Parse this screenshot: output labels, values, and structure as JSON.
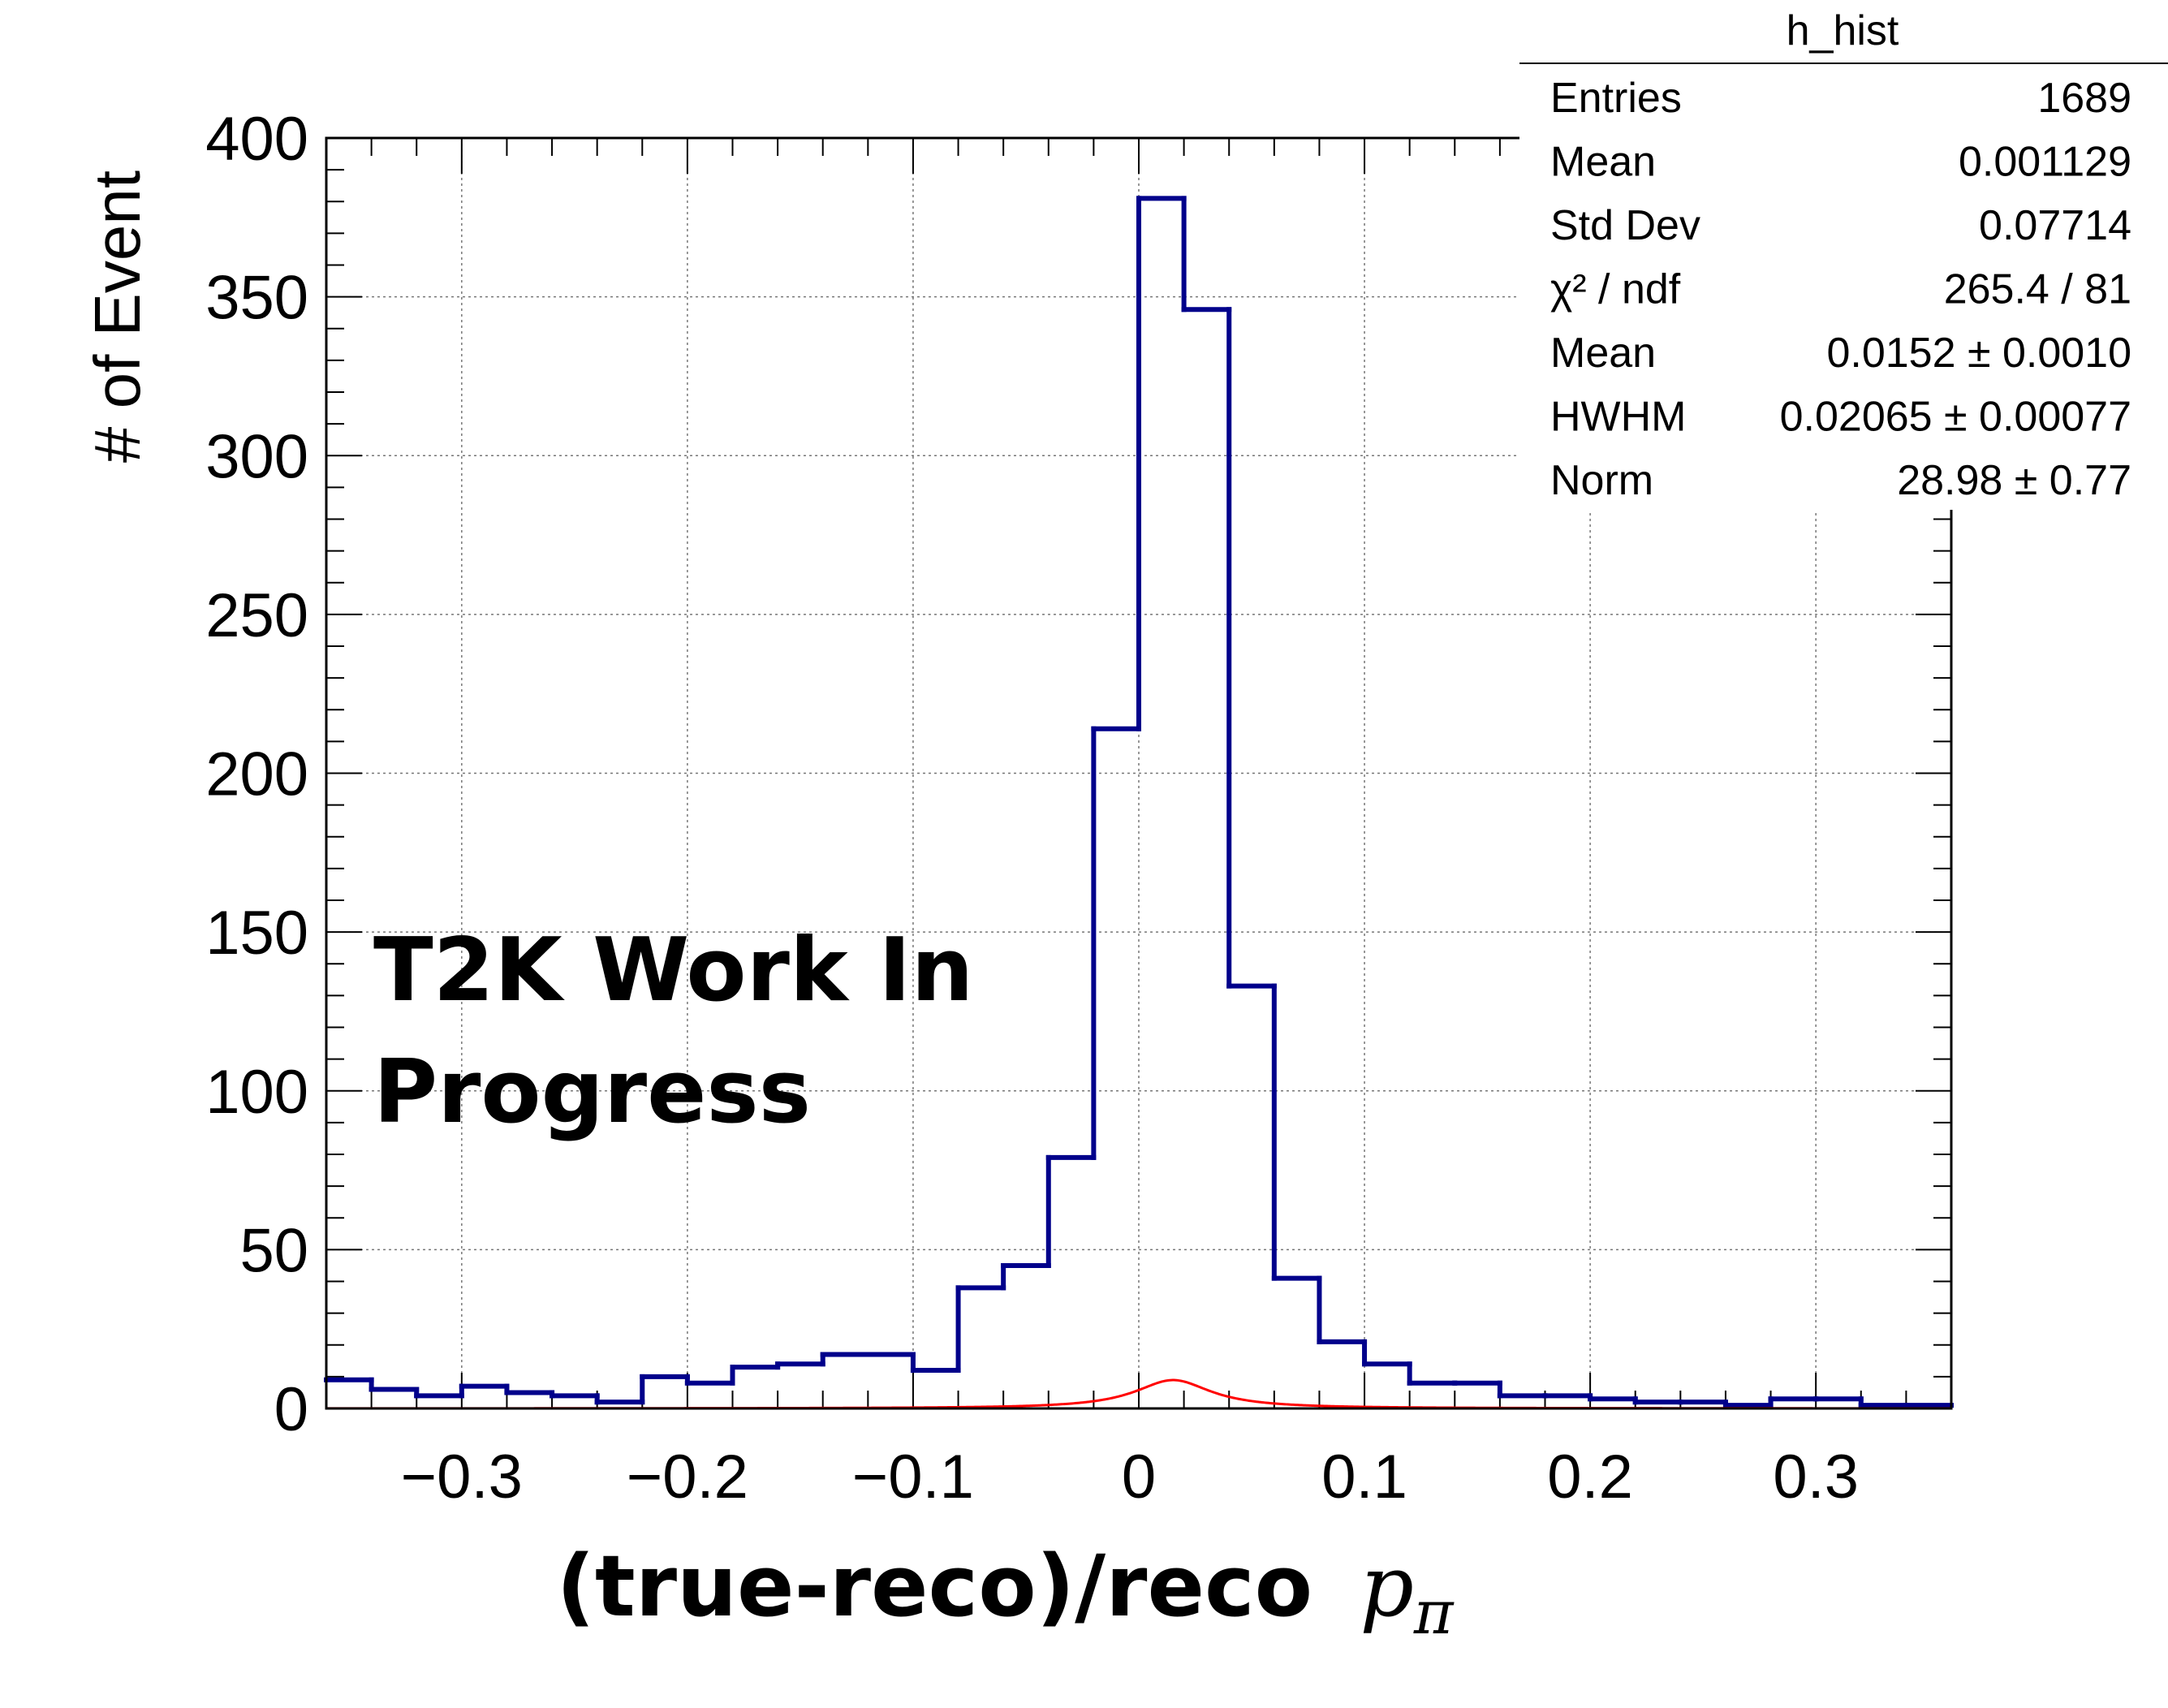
{
  "chart_data": {
    "type": "bar",
    "title": "",
    "xlabel": "(true-reco)/reco",
    "xlabel_math": "p",
    "xlabel_math_sub": "π",
    "ylabel": "# of Event",
    "xlim": [
      -0.36,
      0.36
    ],
    "ylim": [
      0,
      400
    ],
    "grid": true,
    "x_ticks": [
      {
        "value": -0.3,
        "label": "−0.3"
      },
      {
        "value": -0.2,
        "label": "−0.2"
      },
      {
        "value": -0.1,
        "label": "−0.1"
      },
      {
        "value": 0,
        "label": "0"
      },
      {
        "value": 0.1,
        "label": "0.1"
      },
      {
        "value": 0.2,
        "label": "0.2"
      },
      {
        "value": 0.3,
        "label": "0.3"
      }
    ],
    "y_ticks": [
      {
        "value": 0,
        "label": "0"
      },
      {
        "value": 50,
        "label": "50"
      },
      {
        "value": 100,
        "label": "100"
      },
      {
        "value": 150,
        "label": "150"
      },
      {
        "value": 200,
        "label": "200"
      },
      {
        "value": 250,
        "label": "250"
      },
      {
        "value": 300,
        "label": "300"
      },
      {
        "value": 350,
        "label": "350"
      },
      {
        "value": 400,
        "label": "400"
      }
    ],
    "bin_width": 0.02,
    "histogram": {
      "color": "#00008b",
      "bins_low_edge": [
        -0.36,
        -0.34,
        -0.32,
        -0.3,
        -0.28,
        -0.26,
        -0.24,
        -0.22,
        -0.2,
        -0.18,
        -0.16,
        -0.14,
        -0.12,
        -0.1,
        -0.08,
        -0.06,
        -0.04,
        -0.02,
        0.0,
        0.02,
        0.04,
        0.06,
        0.08,
        0.1,
        0.12,
        0.14,
        0.16,
        0.18,
        0.2,
        0.22,
        0.24,
        0.26,
        0.28,
        0.3,
        0.32,
        0.34
      ],
      "counts": [
        9,
        6,
        4,
        7,
        5,
        4,
        2,
        10,
        8,
        13,
        14,
        17,
        17,
        12,
        38,
        45,
        79,
        214,
        381,
        346,
        133,
        41,
        21,
        14,
        8,
        8,
        4,
        4,
        3,
        2,
        2,
        1,
        3,
        3,
        1,
        1
      ]
    },
    "fit": {
      "type": "lorentzian",
      "color": "#ff0000",
      "mean": 0.0152,
      "hwhm": 0.02065,
      "norm": 28.98
    },
    "annotation": [
      "T2K Work In",
      "Progress"
    ],
    "stats_box": {
      "title": "h_hist",
      "rows": [
        {
          "label": "Entries",
          "value": "1689"
        },
        {
          "label": "Mean",
          "value": "0.001129"
        },
        {
          "label": "Std Dev",
          "value": "0.07714"
        },
        {
          "label": "χ² / ndf",
          "value": "265.4 / 81"
        },
        {
          "label": "Mean",
          "value": "0.0152 ± 0.0010"
        },
        {
          "label": "HWHM",
          "value": "0.02065 ± 0.00077"
        },
        {
          "label": "Norm",
          "value": "28.98 ± 0.77"
        }
      ]
    }
  }
}
